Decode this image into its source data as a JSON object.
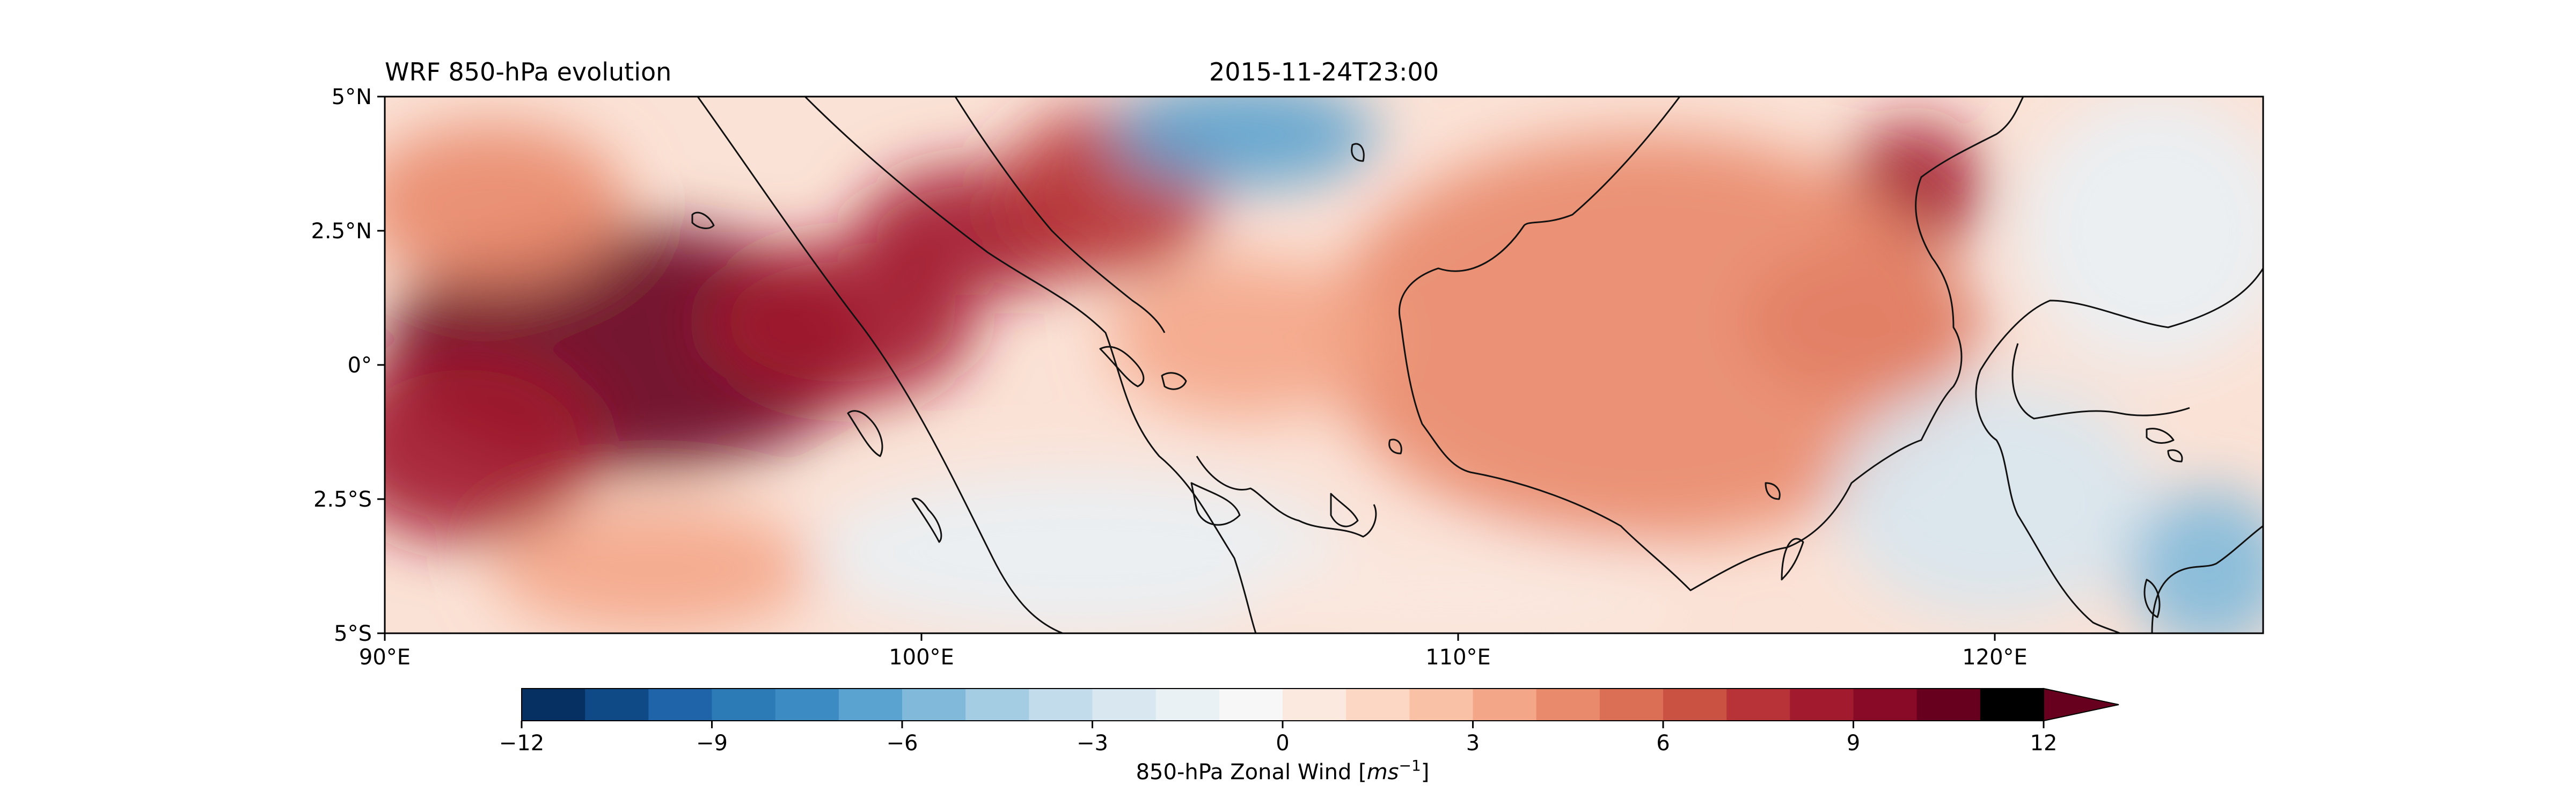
{
  "title_left": "WRF 850-hPa evolution",
  "title_center": "2015-11-24T23:00",
  "map": {
    "lon_range": [
      90,
      125
    ],
    "lat_range": [
      -5,
      5
    ],
    "x_ticks": [
      {
        "value": 90,
        "label": "90°E"
      },
      {
        "value": 100,
        "label": "100°E"
      },
      {
        "value": 110,
        "label": "110°E"
      },
      {
        "value": 120,
        "label": "120°E"
      }
    ],
    "y_ticks": [
      {
        "value": 5,
        "label": "5°N"
      },
      {
        "value": 2.5,
        "label": "2.5°N"
      },
      {
        "value": 0,
        "label": "0°"
      },
      {
        "value": -2.5,
        "label": "2.5°S"
      },
      {
        "value": -5,
        "label": "5°S"
      }
    ],
    "coastline_color": "#111111"
  },
  "colorbar": {
    "label_main": "850-hPa Zonal Wind [",
    "label_unit": "ms",
    "label_exp": "−1",
    "label_end": "]",
    "vmin": -12,
    "vmax": 12,
    "step": 1,
    "extend": "max",
    "ticks": [
      {
        "value": -12,
        "label": "−12"
      },
      {
        "value": -9,
        "label": "−9"
      },
      {
        "value": -6,
        "label": "−6"
      },
      {
        "value": -3,
        "label": "−3"
      },
      {
        "value": 0,
        "label": "0"
      },
      {
        "value": 3,
        "label": "3"
      },
      {
        "value": 6,
        "label": "6"
      },
      {
        "value": 9,
        "label": "9"
      },
      {
        "value": 12,
        "label": "12"
      }
    ],
    "colors": [
      "#053061",
      "#0f4a87",
      "#1f63a8",
      "#2c7bb7",
      "#3c8bc2",
      "#5aa2cf",
      "#80b9da",
      "#a4cde4",
      "#c3dceb",
      "#d8e7f0",
      "#e9f1f5",
      "#f7f7f7",
      "#fbe8df",
      "#fcd7c4",
      "#f9c1a6",
      "#f4a688",
      "#e98a6c",
      "#da6f55",
      "#c95243",
      "#b73337",
      "#a11a2e",
      "#880a26",
      "#67001f"
    ]
  },
  "wind_blobs": [
    {
      "lon": 94.5,
      "lat": 0.3,
      "rx": 4.5,
      "ry": 2.3,
      "u": 10
    },
    {
      "lon": 91.5,
      "lat": -1.5,
      "rx": 2.5,
      "ry": 1.8,
      "u": 8
    },
    {
      "lon": 98.5,
      "lat": 0.8,
      "rx": 2.5,
      "ry": 1.5,
      "u": 8
    },
    {
      "lon": 101,
      "lat": 2.5,
      "rx": 2.2,
      "ry": 1.2,
      "u": 8
    },
    {
      "lon": 103.5,
      "lat": 3.2,
      "rx": 2,
      "ry": 1.6,
      "u": 7
    },
    {
      "lon": 117.5,
      "lat": 0.8,
      "rx": 2.2,
      "ry": 1.4,
      "u": 8
    },
    {
      "lon": 118.5,
      "lat": 3.3,
      "rx": 1.3,
      "ry": 1.2,
      "u": 8
    },
    {
      "lon": 113.5,
      "lat": 0.5,
      "rx": 6,
      "ry": 3.8,
      "u": 4
    },
    {
      "lon": 106,
      "lat": 0.5,
      "rx": 2.5,
      "ry": 1.5,
      "u": 3
    },
    {
      "lon": 92,
      "lat": 3,
      "rx": 2.5,
      "ry": 1.5,
      "u": 4
    },
    {
      "lon": 95,
      "lat": -3.8,
      "rx": 3,
      "ry": 1.2,
      "u": 3
    },
    {
      "lon": 106,
      "lat": 4.3,
      "rx": 2.5,
      "ry": 1,
      "u": -7
    },
    {
      "lon": 103,
      "lat": -3.5,
      "rx": 5,
      "ry": 1.5,
      "u": -2
    },
    {
      "lon": 120,
      "lat": -2.5,
      "rx": 3,
      "ry": 2.2,
      "u": -3
    },
    {
      "lon": 124,
      "lat": -3.8,
      "rx": 1.5,
      "ry": 1.5,
      "u": -6
    },
    {
      "lon": 123,
      "lat": 2.5,
      "rx": 2.5,
      "ry": 2.5,
      "u": -2
    },
    {
      "lon": 110,
      "lat": -4.3,
      "rx": 4,
      "ry": 1,
      "u": 0
    }
  ]
}
